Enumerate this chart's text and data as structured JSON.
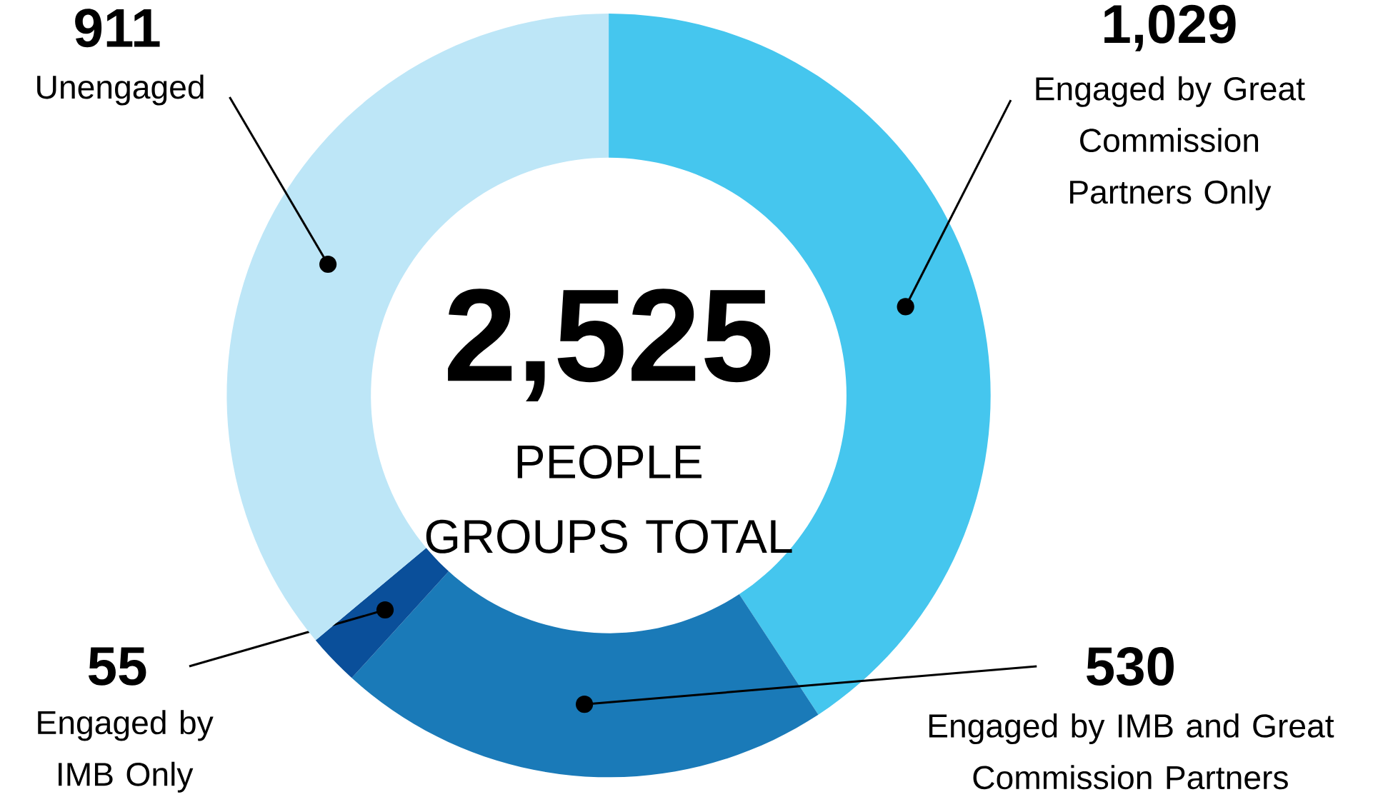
{
  "chart_data": {
    "type": "donut",
    "title": "2,525",
    "subtitle": "PEOPLE GROUPS TOTAL",
    "categories": [
      "Engaged by Great Commission Partners Only",
      "Engaged by IMB and Great Commission Partners",
      "Engaged by IMB Only",
      "Unengaged"
    ],
    "values": [
      1029,
      530,
      55,
      911
    ],
    "value_labels": [
      "1,029",
      "530",
      "55",
      "911"
    ],
    "colors": [
      "#45c6ee",
      "#1a7ab8",
      "#0a4f9a",
      "#bde6f7"
    ]
  }
}
